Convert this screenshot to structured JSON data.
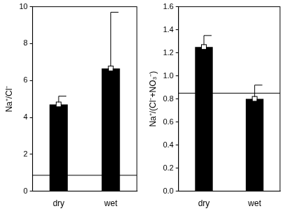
{
  "chart_data": [
    {
      "type": "bar",
      "y_label": "Na⁺/Cl⁻",
      "categories": [
        "dry",
        "wet"
      ],
      "values": [
        4.7,
        6.65
      ],
      "error": [
        0.45,
        3.05
      ],
      "color": "#000000",
      "marker": "square",
      "hline": 0.86,
      "ylim": [
        0,
        10
      ],
      "yticks": [
        0,
        2,
        4,
        6,
        8,
        10
      ]
    },
    {
      "type": "bar",
      "y_label": "Na⁺/(Cl⁻+NO₃⁻)",
      "categories": [
        "dry",
        "wet"
      ],
      "values": [
        1.25,
        0.8
      ],
      "error": [
        0.1,
        0.12
      ],
      "color": "#000000",
      "marker": "square",
      "hline": 0.85,
      "ylim": [
        0,
        1.6
      ],
      "yticks": [
        {
          "value": 0,
          "label": "0.0"
        },
        {
          "value": 0.2,
          "label": "0.2"
        },
        {
          "value": 0.4,
          "label": "0.4"
        },
        {
          "value": 0.6,
          "label": "0.6"
        },
        {
          "value": 0.8,
          "label": "0.8"
        },
        {
          "value": 1,
          "label": "1.0"
        },
        {
          "value": 1.2,
          "label": "1.2"
        },
        {
          "value": 1.4,
          "label": "1.4"
        },
        {
          "value": 1.6,
          "label": "1.6"
        }
      ]
    }
  ]
}
